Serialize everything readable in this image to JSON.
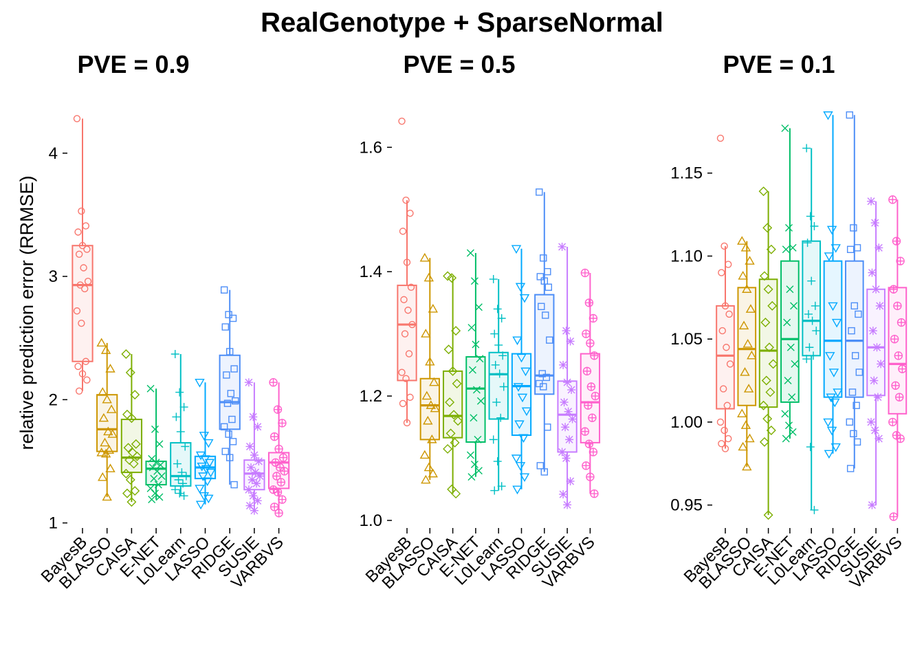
{
  "title": "RealGenotype + SparseNormal",
  "ylabel": "relative prediction error (RRMSE)",
  "categories": [
    "BayesB",
    "BLASSO",
    "CAISA",
    "E-NET",
    "L0Learn",
    "LASSO",
    "RIDGE",
    "SUSIE",
    "VARBVS"
  ],
  "colors": [
    "#F8766D",
    "#CD9600",
    "#7CAE00",
    "#00BE67",
    "#00BFC4",
    "#00A9FF",
    "#4D8EF7",
    "#C77CFF",
    "#FF61CC"
  ],
  "markers": [
    "circle",
    "triangle",
    "diamond",
    "x",
    "plus",
    "triangle-down",
    "square",
    "asterisk",
    "circle-plus"
  ],
  "chart_data": [
    {
      "type": "box",
      "title": "PVE = 0.9",
      "ylim": [
        0.97,
        4.35
      ],
      "yticks": [
        1,
        2,
        3,
        4
      ],
      "ytick_labels": [
        "1",
        "2",
        "3",
        "4"
      ],
      "boxes": [
        {
          "q1": 2.31,
          "median": 2.93,
          "q3": 3.25,
          "whisker_low": 2.07,
          "whisker_high": 4.28,
          "points": [
            4.28,
            3.53,
            3.41,
            3.36,
            3.25,
            3.22,
            3.18,
            3.07,
            2.96,
            2.93,
            2.9,
            2.72,
            2.62,
            2.31,
            2.27,
            2.21,
            2.16,
            2.07
          ]
        },
        {
          "q1": 1.58,
          "median": 1.76,
          "q3": 2.04,
          "whisker_low": 1.21,
          "whisker_high": 2.46,
          "points": [
            2.46,
            2.4,
            2.25,
            2.06,
            2.0,
            1.92,
            1.85,
            1.74,
            1.72,
            1.65,
            1.59,
            1.57,
            1.56,
            1.44,
            1.37,
            1.21
          ]
        },
        {
          "q1": 1.41,
          "median": 1.53,
          "q3": 1.84,
          "whisker_low": 1.17,
          "whisker_high": 2.37,
          "points": [
            2.37,
            2.22,
            2.04,
            1.88,
            1.85,
            1.64,
            1.61,
            1.57,
            1.54,
            1.51,
            1.48,
            1.4,
            1.35,
            1.26,
            1.24,
            1.17
          ]
        },
        {
          "q1": 1.31,
          "median": 1.44,
          "q3": 1.5,
          "whisker_low": 1.19,
          "whisker_high": 2.09,
          "points": [
            2.09,
            1.76,
            1.64,
            1.52,
            1.49,
            1.47,
            1.45,
            1.42,
            1.38,
            1.36,
            1.31,
            1.28,
            1.24,
            1.21,
            1.19
          ]
        },
        {
          "q1": 1.3,
          "median": 1.38,
          "q3": 1.65,
          "whisker_low": 1.22,
          "whisker_high": 2.37,
          "points": [
            2.37,
            2.06,
            1.94,
            1.86,
            1.74,
            1.62,
            1.48,
            1.41,
            1.38,
            1.35,
            1.32,
            1.27,
            1.24,
            1.22
          ]
        },
        {
          "q1": 1.36,
          "median": 1.45,
          "q3": 1.54,
          "whisker_low": 1.15,
          "whisker_high": 2.14,
          "points": [
            2.14,
            1.71,
            1.65,
            1.55,
            1.52,
            1.49,
            1.46,
            1.44,
            1.41,
            1.38,
            1.34,
            1.28,
            1.22,
            1.2,
            1.15
          ]
        },
        {
          "q1": 1.76,
          "median": 1.98,
          "q3": 2.36,
          "whisker_low": 1.31,
          "whisker_high": 2.89,
          "points": [
            2.89,
            2.69,
            2.66,
            2.59,
            2.39,
            2.25,
            2.2,
            2.05,
            1.99,
            1.97,
            1.84,
            1.78,
            1.72,
            1.66,
            1.58,
            1.53,
            1.31
          ]
        },
        {
          "q1": 1.27,
          "median": 1.4,
          "q3": 1.51,
          "whisker_low": 1.1,
          "whisker_high": 2.14,
          "points": [
            2.14,
            1.86,
            1.78,
            1.62,
            1.55,
            1.5,
            1.45,
            1.41,
            1.38,
            1.35,
            1.32,
            1.27,
            1.22,
            1.18,
            1.14,
            1.1
          ]
        },
        {
          "q1": 1.28,
          "median": 1.49,
          "q3": 1.57,
          "whisker_low": 1.08,
          "whisker_high": 2.14,
          "points": [
            2.14,
            1.92,
            1.81,
            1.7,
            1.6,
            1.53,
            1.49,
            1.45,
            1.42,
            1.38,
            1.33,
            1.27,
            1.25,
            1.19,
            1.13,
            1.08
          ]
        }
      ]
    },
    {
      "type": "box",
      "title": "PVE = 0.5",
      "ylim": [
        0.99,
        1.66
      ],
      "yticks": [
        1.0,
        1.2,
        1.4,
        1.6
      ],
      "ytick_labels": [
        "1.0",
        "1.2",
        "1.4",
        "1.6"
      ],
      "boxes": [
        {
          "q1": 1.225,
          "median": 1.315,
          "q3": 1.378,
          "whisker_low": 1.157,
          "whisker_high": 1.515,
          "points": [
            1.642,
            1.515,
            1.494,
            1.465,
            1.415,
            1.375,
            1.355,
            1.338,
            1.315,
            1.3,
            1.268,
            1.238,
            1.228,
            1.198,
            1.188,
            1.157
          ]
        },
        {
          "q1": 1.13,
          "median": 1.185,
          "q3": 1.228,
          "whisker_low": 1.065,
          "whisker_high": 1.422,
          "points": [
            1.422,
            1.39,
            1.34,
            1.3,
            1.255,
            1.222,
            1.2,
            1.185,
            1.18,
            1.16,
            1.13,
            1.105,
            1.085,
            1.075,
            1.065
          ]
        },
        {
          "q1": 1.133,
          "median": 1.168,
          "q3": 1.24,
          "whisker_low": 1.043,
          "whisker_high": 1.393,
          "points": [
            1.393,
            1.39,
            1.305,
            1.275,
            1.24,
            1.22,
            1.19,
            1.17,
            1.16,
            1.14,
            1.125,
            1.115,
            1.05,
            1.043
          ]
        },
        {
          "q1": 1.126,
          "median": 1.212,
          "q3": 1.263,
          "whisker_low": 1.07,
          "whisker_high": 1.43,
          "points": [
            1.43,
            1.385,
            1.343,
            1.31,
            1.283,
            1.26,
            1.242,
            1.21,
            1.192,
            1.165,
            1.13,
            1.105,
            1.09,
            1.08,
            1.07
          ]
        },
        {
          "q1": 1.163,
          "median": 1.235,
          "q3": 1.27,
          "whisker_low": 1.048,
          "whisker_high": 1.388,
          "points": [
            1.388,
            1.34,
            1.325,
            1.3,
            1.282,
            1.265,
            1.25,
            1.236,
            1.215,
            1.19,
            1.165,
            1.13,
            1.095,
            1.055,
            1.048
          ]
        },
        {
          "q1": 1.137,
          "median": 1.216,
          "q3": 1.268,
          "whisker_low": 1.05,
          "whisker_high": 1.437,
          "points": [
            1.437,
            1.376,
            1.358,
            1.29,
            1.262,
            1.24,
            1.215,
            1.198,
            1.176,
            1.155,
            1.133,
            1.1,
            1.088,
            1.07,
            1.05
          ]
        },
        {
          "q1": 1.203,
          "median": 1.233,
          "q3": 1.363,
          "whisker_low": 1.078,
          "whisker_high": 1.528,
          "points": [
            1.528,
            1.422,
            1.4,
            1.392,
            1.385,
            1.375,
            1.344,
            1.33,
            1.29,
            1.236,
            1.23,
            1.22,
            1.215,
            1.15,
            1.088,
            1.078
          ]
        },
        {
          "q1": 1.11,
          "median": 1.17,
          "q3": 1.224,
          "whisker_low": 1.025,
          "whisker_high": 1.44,
          "points": [
            1.44,
            1.305,
            1.288,
            1.25,
            1.222,
            1.21,
            1.19,
            1.175,
            1.163,
            1.15,
            1.13,
            1.11,
            1.1,
            1.063,
            1.042,
            1.025
          ]
        },
        {
          "q1": 1.125,
          "median": 1.19,
          "q3": 1.268,
          "whisker_low": 1.043,
          "whisker_high": 1.398,
          "points": [
            1.398,
            1.35,
            1.325,
            1.3,
            1.285,
            1.265,
            1.24,
            1.215,
            1.2,
            1.185,
            1.165,
            1.143,
            1.123,
            1.11,
            1.088,
            1.07,
            1.043
          ]
        }
      ]
    },
    {
      "type": "box",
      "title": "PVE = 0.1",
      "ylim": [
        0.937,
        1.188
      ],
      "yticks": [
        0.95,
        1.0,
        1.05,
        1.1,
        1.15
      ],
      "ytick_labels": [
        "0.95",
        "1.00",
        "1.05",
        "1.10",
        "1.15"
      ],
      "boxes": [
        {
          "q1": 1.008,
          "median": 1.04,
          "q3": 1.07,
          "whisker_low": 0.984,
          "whisker_high": 1.106,
          "points": [
            1.171,
            1.106,
            1.095,
            1.09,
            1.07,
            1.065,
            1.055,
            1.045,
            1.035,
            1.02,
            1.01,
            1.0,
            0.995,
            0.99,
            0.987,
            0.984
          ]
        },
        {
          "q1": 1.01,
          "median": 1.044,
          "q3": 1.081,
          "whisker_low": 0.973,
          "whisker_high": 1.109,
          "points": [
            1.109,
            1.105,
            1.097,
            1.088,
            1.08,
            1.068,
            1.058,
            1.047,
            1.04,
            1.03,
            1.02,
            1.005,
            0.998,
            0.99,
            0.985,
            0.973
          ]
        },
        {
          "q1": 1.009,
          "median": 1.043,
          "q3": 1.086,
          "whisker_low": 0.944,
          "whisker_high": 1.139,
          "points": [
            1.139,
            1.117,
            1.104,
            1.088,
            1.08,
            1.07,
            1.06,
            1.045,
            1.035,
            1.025,
            1.018,
            1.01,
            1.002,
            0.995,
            0.988,
            0.944
          ]
        },
        {
          "q1": 1.012,
          "median": 1.05,
          "q3": 1.097,
          "whisker_low": 0.99,
          "whisker_high": 1.177,
          "points": [
            1.177,
            1.117,
            1.105,
            1.104,
            1.08,
            1.07,
            1.06,
            1.045,
            1.035,
            1.025,
            1.015,
            1.005,
            0.998,
            0.994,
            0.99
          ]
        },
        {
          "q1": 1.04,
          "median": 1.061,
          "q3": 1.109,
          "whisker_low": 0.947,
          "whisker_high": 1.165,
          "points": [
            1.165,
            1.124,
            1.118,
            1.108,
            1.085,
            1.07,
            1.065,
            1.061,
            1.055,
            1.045,
            1.04,
            1.038,
            0.985,
            0.947
          ]
        },
        {
          "q1": 1.015,
          "median": 1.049,
          "q3": 1.097,
          "whisker_low": 0.981,
          "whisker_high": 1.185,
          "points": [
            1.185,
            1.116,
            1.105,
            1.1,
            1.07,
            1.06,
            1.04,
            1.03,
            1.018,
            1.015,
            1.012,
            1.0,
            0.995,
            0.985,
            0.981
          ]
        },
        {
          "q1": 1.015,
          "median": 1.049,
          "q3": 1.097,
          "whisker_low": 0.972,
          "whisker_high": 1.185,
          "points": [
            1.185,
            1.117,
            1.105,
            1.104,
            1.07,
            1.065,
            1.055,
            1.04,
            1.03,
            1.018,
            1.01,
            1.0,
            0.993,
            0.988,
            0.972
          ]
        },
        {
          "q1": 1.016,
          "median": 1.045,
          "q3": 1.08,
          "whisker_low": 0.95,
          "whisker_high": 1.133,
          "points": [
            1.133,
            1.12,
            1.105,
            1.09,
            1.08,
            1.07,
            1.055,
            1.045,
            1.035,
            1.025,
            1.015,
            1.0,
            0.995,
            0.99,
            0.95
          ]
        },
        {
          "q1": 1.005,
          "median": 1.035,
          "q3": 1.081,
          "whisker_low": 0.943,
          "whisker_high": 1.134,
          "points": [
            1.134,
            1.109,
            1.097,
            1.08,
            1.07,
            1.06,
            1.05,
            1.04,
            1.032,
            1.022,
            1.015,
            1.0,
            0.992,
            0.99,
            0.943
          ]
        }
      ]
    }
  ]
}
